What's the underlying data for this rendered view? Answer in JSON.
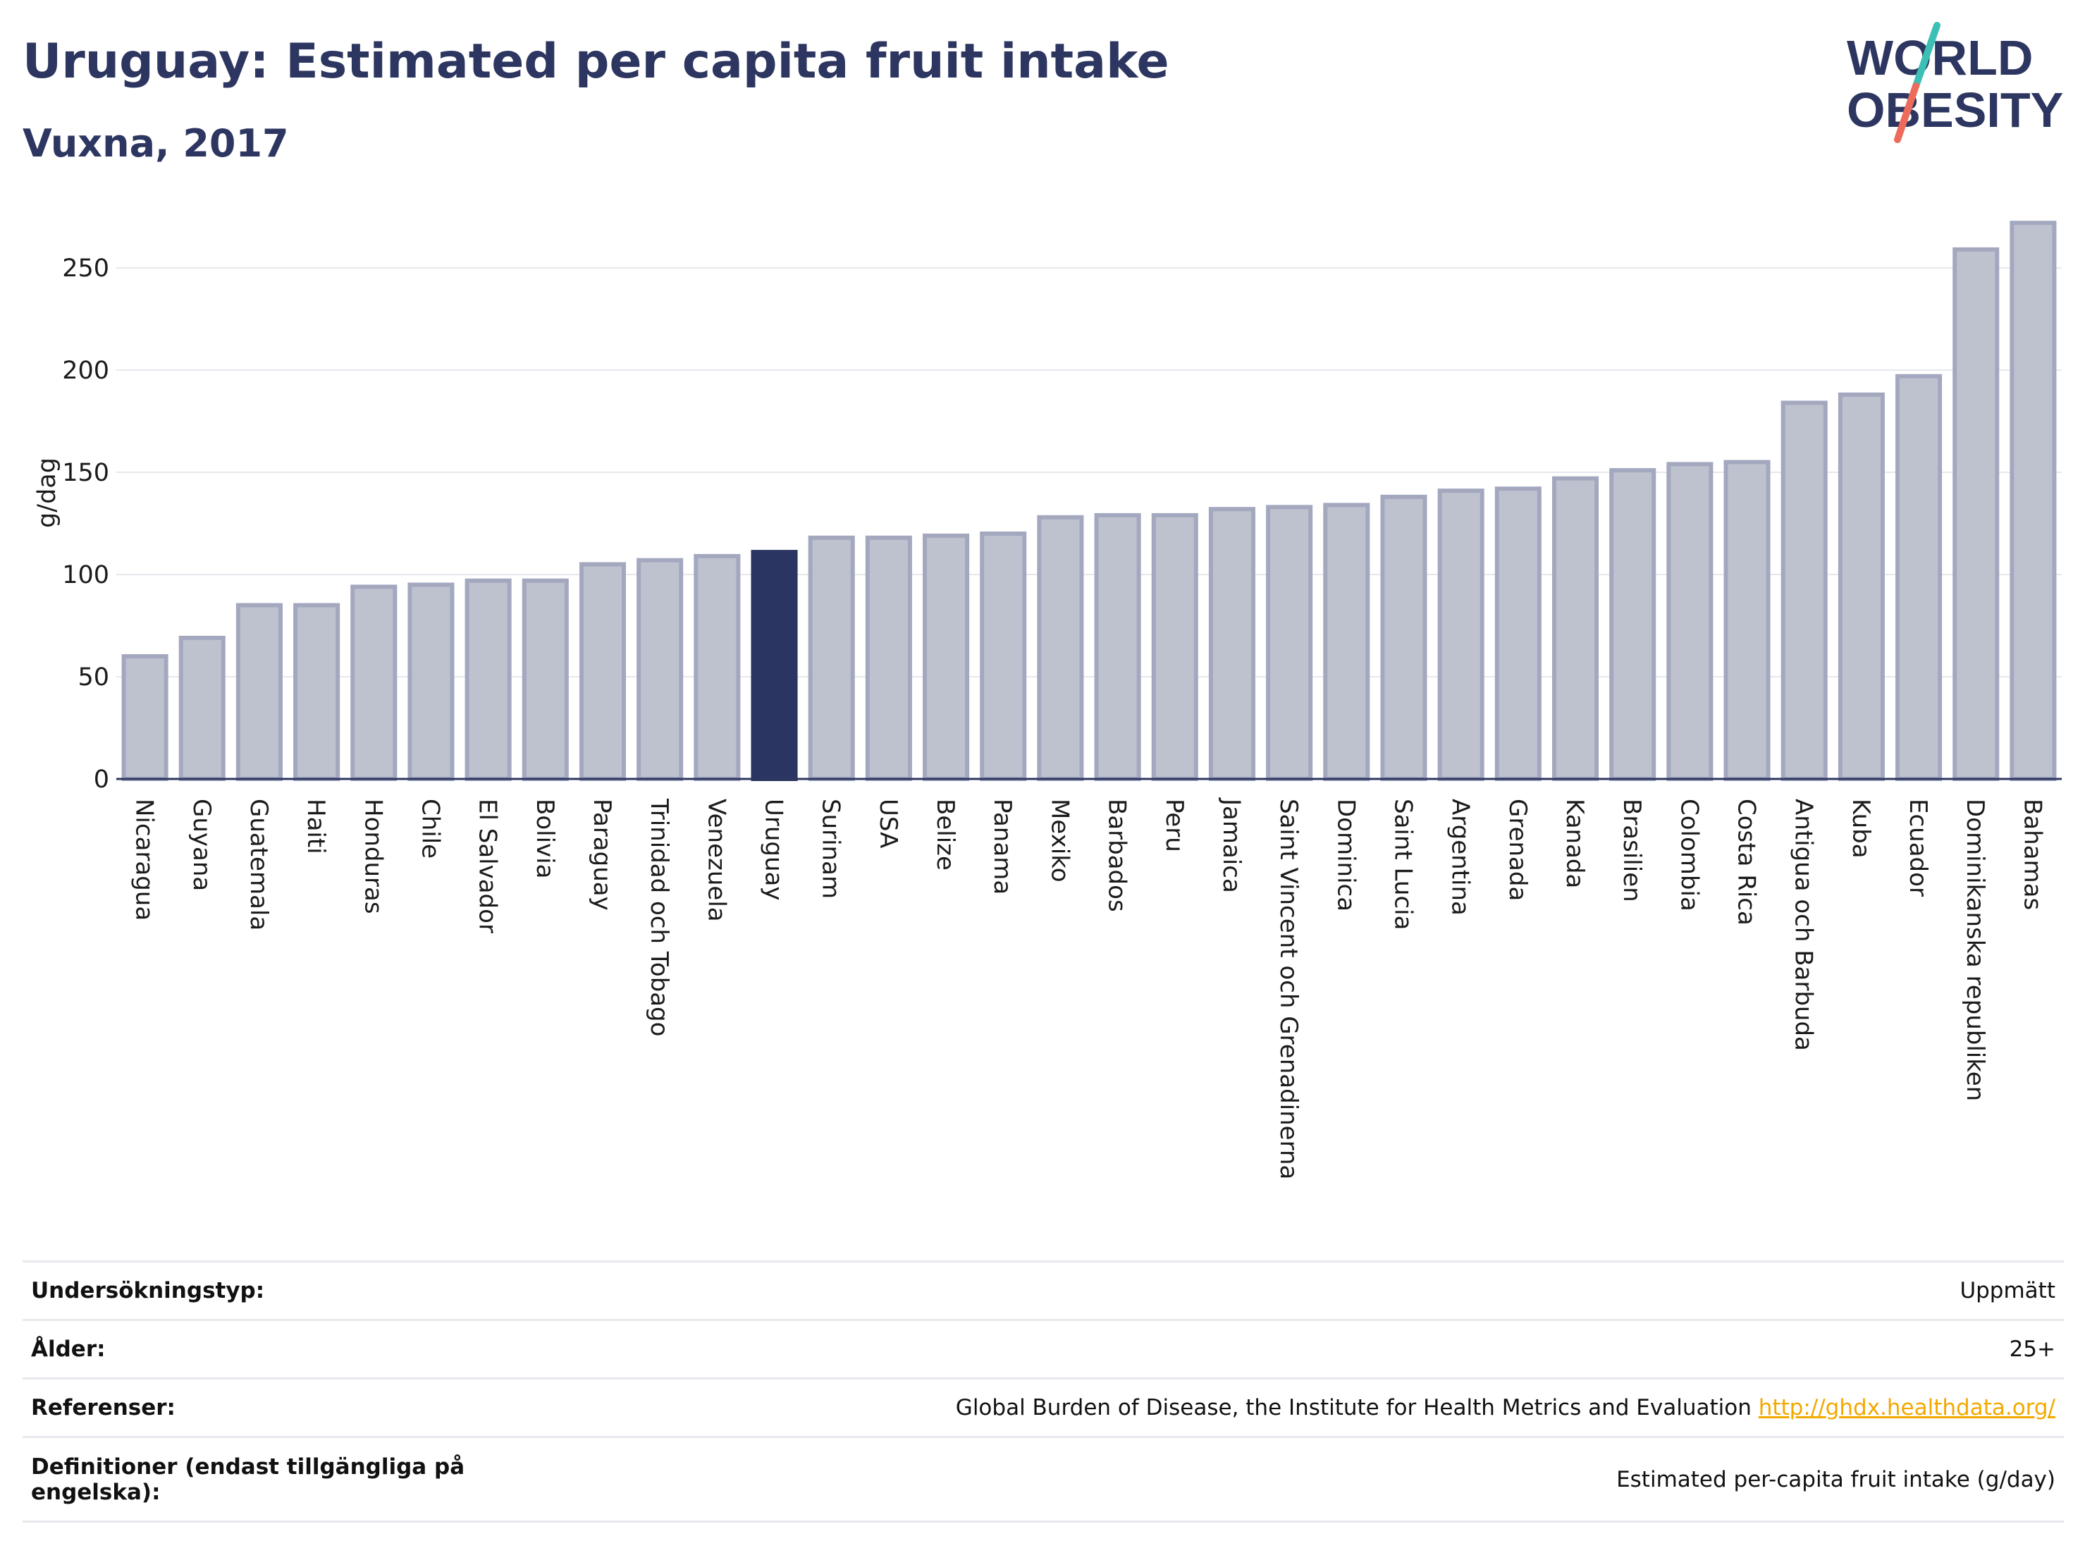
{
  "header": {
    "title": "Uruguay: Estimated per capita fruit intake",
    "subtitle": "Vuxna, 2017"
  },
  "logo": {
    "line1": "WORLD",
    "line2": "OBESITY",
    "icon": "world-obesity-logo"
  },
  "colors": {
    "highlight": "#2b3561",
    "bar_fill": "#bec2cf",
    "bar_stroke": "#a3a8bf",
    "text": "#2d3660",
    "link": "#f2a900"
  },
  "chart_data": {
    "type": "bar",
    "ylabel": "g/dag",
    "ylim": [
      0,
      280
    ],
    "yticks": [
      0,
      50,
      100,
      150,
      200,
      250
    ],
    "grid": true,
    "highlight": "Uruguay",
    "categories": [
      "Nicaragua",
      "Guyana",
      "Guatemala",
      "Haiti",
      "Honduras",
      "Chile",
      "El Salvador",
      "Bolivia",
      "Paraguay",
      "Trinidad och Tobago",
      "Venezuela",
      "Uruguay",
      "Surinam",
      "USA",
      "Belize",
      "Panama",
      "Mexiko",
      "Barbados",
      "Peru",
      "Jamaica",
      "Saint Vincent och Grenadinerna",
      "Dominica",
      "Saint Lucia",
      "Argentina",
      "Grenada",
      "Kanada",
      "Brasilien",
      "Colombia",
      "Costa Rica",
      "Antigua och Barbuda",
      "Kuba",
      "Ecuador",
      "Dominikanska republiken",
      "Bahamas"
    ],
    "values": [
      60,
      69,
      85,
      85,
      94,
      95,
      97,
      97,
      105,
      107,
      109,
      111,
      118,
      118,
      119,
      120,
      128,
      129,
      129,
      132,
      133,
      134,
      138,
      141,
      142,
      147,
      151,
      154,
      155,
      184,
      188,
      197,
      259,
      272
    ]
  },
  "info": {
    "rows": [
      {
        "key": "Undersökningstyp:",
        "value": "Uppmätt"
      },
      {
        "key": "Ålder:",
        "value": "25+"
      },
      {
        "key": "Referenser:",
        "value": "Global Burden of Disease, the Institute for Health Metrics and Evaluation",
        "link": "http://ghdx.healthdata.org/"
      },
      {
        "key": "Definitioner (endast tillgängliga på engelska):",
        "value": "Estimated per-capita fruit intake (g/day)"
      }
    ]
  }
}
